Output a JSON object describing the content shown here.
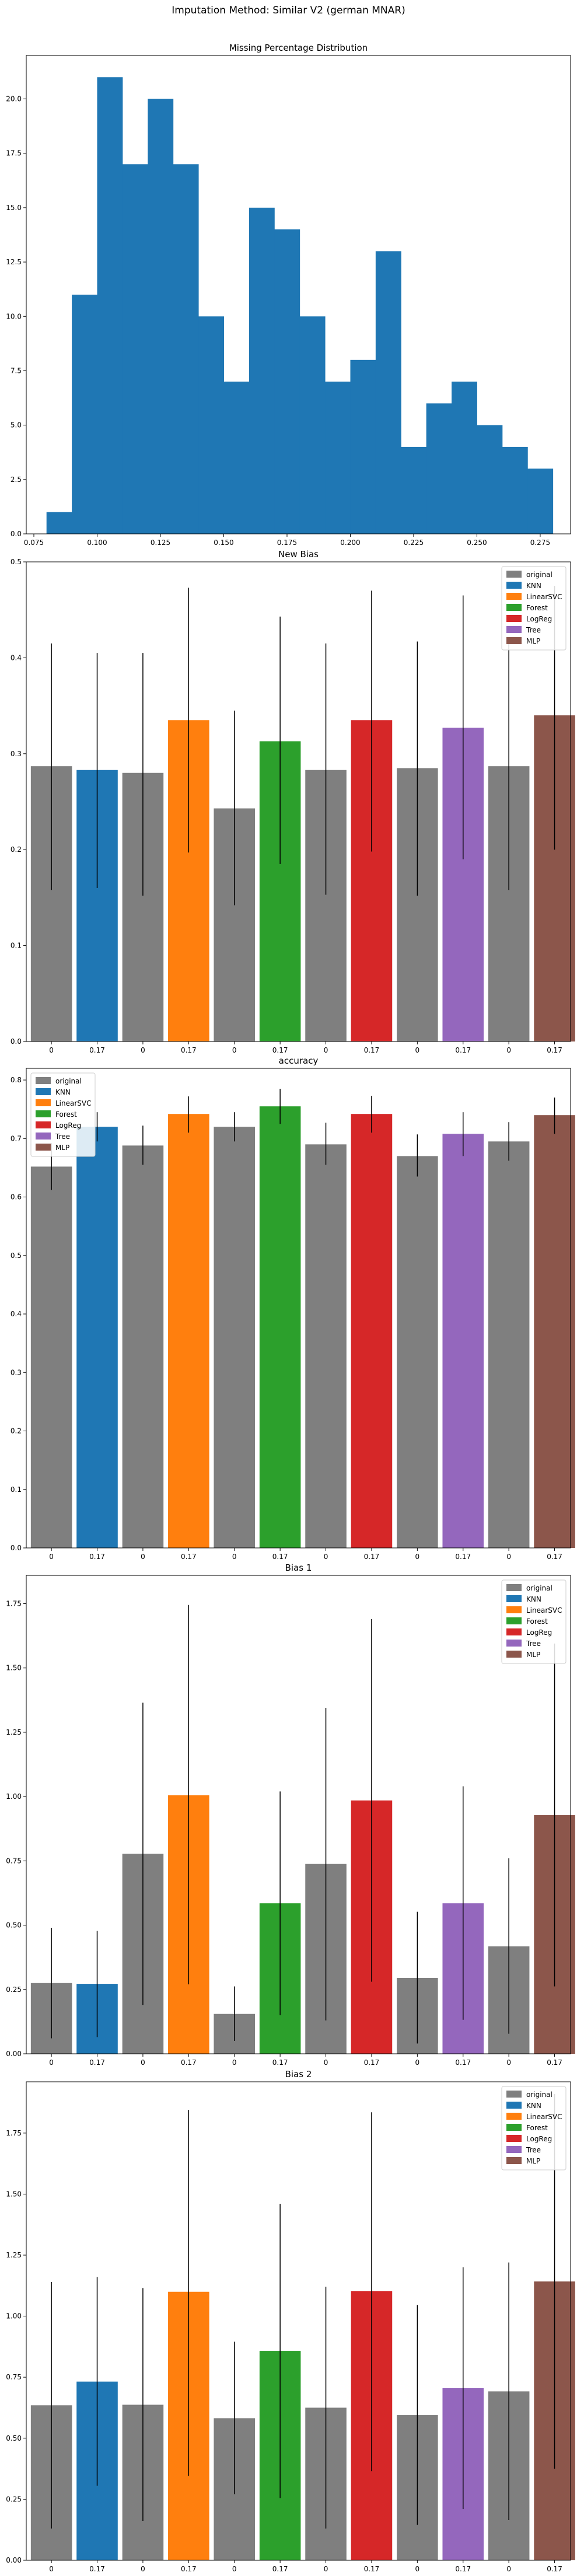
{
  "figure": {
    "suptitle": "Imputation Method: Similar V2 (german MNAR)"
  },
  "legend_entries": [
    "original",
    "KNN",
    "LinearSVC",
    "Forest",
    "LogReg",
    "Tree",
    "MLP"
  ],
  "colors": {
    "original": "#7f7f7f",
    "KNN": "#1f77b4",
    "LinearSVC": "#ff7f0e",
    "Forest": "#2ca02c",
    "LogReg": "#d62728",
    "Tree": "#9467bd",
    "MLP": "#8c564b",
    "hist": "#1f77b4"
  },
  "chart_data": [
    {
      "type": "bar",
      "subtype": "histogram",
      "title": "Missing Percentage Distribution",
      "xlim": [
        0.072,
        0.287
      ],
      "ylim": [
        0,
        22
      ],
      "xticks": [
        "0.075",
        "0.100",
        "0.125",
        "0.150",
        "0.175",
        "0.200",
        "0.225",
        "0.250",
        "0.275"
      ],
      "xtick_values": [
        0.075,
        0.1,
        0.125,
        0.15,
        0.175,
        0.2,
        0.225,
        0.25,
        0.275
      ],
      "yticks": [
        "0.0",
        "2.5",
        "5.0",
        "7.5",
        "10.0",
        "12.5",
        "15.0",
        "17.5",
        "20.0"
      ],
      "ytick_values": [
        0,
        2.5,
        5,
        7.5,
        10,
        12.5,
        15,
        17.5,
        20
      ],
      "bin_edges": [
        0.08,
        0.09,
        0.1,
        0.11,
        0.12,
        0.13,
        0.14,
        0.15,
        0.16,
        0.17,
        0.18,
        0.19,
        0.2,
        0.21,
        0.22,
        0.23,
        0.24,
        0.25,
        0.26,
        0.27,
        0.28
      ],
      "values": [
        1,
        11,
        21,
        17,
        20,
        17,
        10,
        7,
        15,
        14,
        10,
        7,
        8,
        13,
        4,
        6,
        7,
        5,
        4,
        3
      ],
      "grid": false
    },
    {
      "type": "bar",
      "title": "New Bias",
      "legend_position": "top-right",
      "ylim": [
        0,
        0.5
      ],
      "yticks": [
        "0.0",
        "0.1",
        "0.2",
        "0.3",
        "0.4",
        "0.5"
      ],
      "ytick_values": [
        0,
        0.1,
        0.2,
        0.3,
        0.4,
        0.5
      ],
      "categories": [
        "0",
        "0.17"
      ],
      "groups": [
        {
          "name": "KNN",
          "original": 0.287,
          "original_err": [
            0.158,
            0.415
          ],
          "value": 0.283,
          "err": [
            0.16,
            0.405
          ]
        },
        {
          "name": "LinearSVC",
          "original": 0.28,
          "original_err": [
            0.152,
            0.405
          ],
          "value": 0.335,
          "err": [
            0.197,
            0.473
          ]
        },
        {
          "name": "Forest",
          "original": 0.243,
          "original_err": [
            0.142,
            0.345
          ],
          "value": 0.313,
          "err": [
            0.185,
            0.443
          ]
        },
        {
          "name": "LogReg",
          "original": 0.283,
          "original_err": [
            0.153,
            0.415
          ],
          "value": 0.335,
          "err": [
            0.198,
            0.47
          ]
        },
        {
          "name": "Tree",
          "original": 0.285,
          "original_err": [
            0.152,
            0.417
          ],
          "value": 0.327,
          "err": [
            0.19,
            0.465
          ]
        },
        {
          "name": "MLP",
          "original": 0.287,
          "original_err": [
            0.158,
            0.415
          ],
          "value": 0.34,
          "err": [
            0.2,
            0.475
          ]
        }
      ]
    },
    {
      "type": "bar",
      "title": "accuracy",
      "legend_position": "top-left",
      "ylim": [
        0,
        0.82
      ],
      "yticks": [
        "0.0",
        "0.1",
        "0.2",
        "0.3",
        "0.4",
        "0.5",
        "0.6",
        "0.7",
        "0.8"
      ],
      "ytick_values": [
        0,
        0.1,
        0.2,
        0.3,
        0.4,
        0.5,
        0.6,
        0.7,
        0.8
      ],
      "categories": [
        "0",
        "0.17"
      ],
      "groups": [
        {
          "name": "KNN",
          "original": 0.652,
          "original_err": [
            0.612,
            0.692
          ],
          "value": 0.72,
          "err": [
            0.695,
            0.745
          ]
        },
        {
          "name": "LinearSVC",
          "original": 0.688,
          "original_err": [
            0.655,
            0.722
          ],
          "value": 0.742,
          "err": [
            0.71,
            0.772
          ]
        },
        {
          "name": "Forest",
          "original": 0.72,
          "original_err": [
            0.695,
            0.745
          ],
          "value": 0.755,
          "err": [
            0.725,
            0.785
          ]
        },
        {
          "name": "LogReg",
          "original": 0.69,
          "original_err": [
            0.655,
            0.727
          ],
          "value": 0.742,
          "err": [
            0.71,
            0.773
          ]
        },
        {
          "name": "Tree",
          "original": 0.67,
          "original_err": [
            0.635,
            0.707
          ],
          "value": 0.708,
          "err": [
            0.67,
            0.745
          ]
        },
        {
          "name": "MLP",
          "original": 0.695,
          "original_err": [
            0.662,
            0.728
          ],
          "value": 0.74,
          "err": [
            0.708,
            0.77
          ]
        }
      ]
    },
    {
      "type": "bar",
      "title": "Bias 1",
      "legend_position": "top-right",
      "ylim": [
        0,
        1.86
      ],
      "yticks": [
        "0.00",
        "0.25",
        "0.50",
        "0.75",
        "1.00",
        "1.25",
        "1.50",
        "1.75"
      ],
      "ytick_values": [
        0,
        0.25,
        0.5,
        0.75,
        1.0,
        1.25,
        1.5,
        1.75
      ],
      "categories": [
        "0",
        "0.17"
      ],
      "groups": [
        {
          "name": "KNN",
          "original": 0.275,
          "original_err": [
            0.06,
            0.49
          ],
          "value": 0.272,
          "err": [
            0.065,
            0.478
          ]
        },
        {
          "name": "LinearSVC",
          "original": 0.778,
          "original_err": [
            0.19,
            1.365
          ],
          "value": 1.005,
          "err": [
            0.27,
            1.745
          ]
        },
        {
          "name": "Forest",
          "original": 0.155,
          "original_err": [
            0.05,
            0.262
          ],
          "value": 0.585,
          "err": [
            0.15,
            1.02
          ]
        },
        {
          "name": "LogReg",
          "original": 0.738,
          "original_err": [
            0.13,
            1.345
          ],
          "value": 0.985,
          "err": [
            0.28,
            1.69
          ]
        },
        {
          "name": "Tree",
          "original": 0.295,
          "original_err": [
            0.04,
            0.552
          ],
          "value": 0.585,
          "err": [
            0.132,
            1.04
          ]
        },
        {
          "name": "MLP",
          "original": 0.418,
          "original_err": [
            0.078,
            0.76
          ],
          "value": 0.928,
          "err": [
            0.262,
            1.595
          ]
        }
      ]
    },
    {
      "type": "bar",
      "title": "Bias 2",
      "legend_position": "top-right",
      "ylim": [
        0,
        1.96
      ],
      "yticks": [
        "0.00",
        "0.25",
        "0.50",
        "0.75",
        "1.00",
        "1.25",
        "1.50",
        "1.75"
      ],
      "ytick_values": [
        0,
        0.25,
        0.5,
        0.75,
        1.0,
        1.25,
        1.5,
        1.75
      ],
      "categories": [
        "0",
        "0.17"
      ],
      "groups": [
        {
          "name": "KNN",
          "original": 0.635,
          "original_err": [
            0.13,
            1.14
          ],
          "value": 0.732,
          "err": [
            0.305,
            1.16
          ]
        },
        {
          "name": "LinearSVC",
          "original": 0.637,
          "original_err": [
            0.16,
            1.115
          ],
          "value": 1.1,
          "err": [
            0.345,
            1.845
          ]
        },
        {
          "name": "Forest",
          "original": 0.582,
          "original_err": [
            0.27,
            0.895
          ],
          "value": 0.858,
          "err": [
            0.255,
            1.46
          ]
        },
        {
          "name": "LogReg",
          "original": 0.625,
          "original_err": [
            0.13,
            1.12
          ],
          "value": 1.102,
          "err": [
            0.365,
            1.835
          ]
        },
        {
          "name": "Tree",
          "original": 0.595,
          "original_err": [
            0.145,
            1.045
          ],
          "value": 0.705,
          "err": [
            0.21,
            1.2
          ]
        },
        {
          "name": "MLP",
          "original": 0.692,
          "original_err": [
            0.165,
            1.22
          ],
          "value": 1.142,
          "err": [
            0.375,
            1.91
          ]
        }
      ]
    }
  ]
}
